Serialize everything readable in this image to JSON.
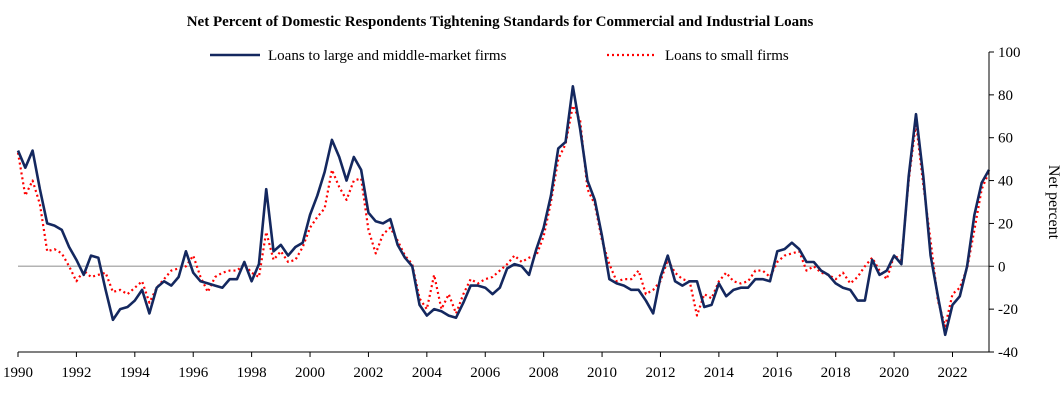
{
  "chart_data": {
    "type": "line",
    "title": "Net Percent of Domestic Respondents Tightening Standards  for Commercial  and Industrial  Loans",
    "xlabel": "",
    "ylabel": "Net percent",
    "xlim": [
      1990,
      2023.25
    ],
    "ylim": [
      -40,
      100
    ],
    "x_ticks": [
      "1990",
      "1992",
      "1994",
      "1996",
      "1998",
      "2000",
      "2002",
      "2004",
      "2006",
      "2008",
      "2010",
      "2012",
      "2014",
      "2016",
      "2018",
      "2020",
      "2022"
    ],
    "y_ticks": [
      "100",
      "80",
      "60",
      "40",
      "20",
      "0",
      "-20",
      "-40"
    ],
    "y_axis_side": "right",
    "grid": false,
    "legend_position": "top-center",
    "zero_line_color": "#b3b3b3",
    "series": [
      {
        "name": "Loans to large and middle-market firms",
        "color": "#14285f",
        "style": "solid",
        "points": [
          [
            1990.0,
            54
          ],
          [
            1990.25,
            46
          ],
          [
            1990.5,
            54
          ],
          [
            1990.75,
            36
          ],
          [
            1991.0,
            20
          ],
          [
            1991.25,
            19
          ],
          [
            1991.5,
            17
          ],
          [
            1991.75,
            9
          ],
          [
            1992.0,
            3
          ],
          [
            1992.25,
            -4
          ],
          [
            1992.5,
            5
          ],
          [
            1992.75,
            4
          ],
          [
            1993.0,
            -11
          ],
          [
            1993.25,
            -25
          ],
          [
            1993.5,
            -20
          ],
          [
            1993.75,
            -19
          ],
          [
            1994.0,
            -16
          ],
          [
            1994.25,
            -11
          ],
          [
            1994.5,
            -22
          ],
          [
            1994.75,
            -10
          ],
          [
            1995.0,
            -7
          ],
          [
            1995.25,
            -9
          ],
          [
            1995.5,
            -5
          ],
          [
            1995.75,
            7
          ],
          [
            1996.0,
            -3
          ],
          [
            1996.25,
            -7
          ],
          [
            1996.5,
            -8
          ],
          [
            1996.75,
            -9
          ],
          [
            1997.0,
            -10
          ],
          [
            1997.25,
            -6
          ],
          [
            1997.5,
            -6
          ],
          [
            1997.75,
            2
          ],
          [
            1998.0,
            -7
          ],
          [
            1998.25,
            1
          ],
          [
            1998.5,
            36
          ],
          [
            1998.75,
            7
          ],
          [
            1999.0,
            10
          ],
          [
            1999.25,
            5
          ],
          [
            1999.5,
            9
          ],
          [
            1999.75,
            11
          ],
          [
            2000.0,
            24
          ],
          [
            2000.25,
            33
          ],
          [
            2000.5,
            44
          ],
          [
            2000.75,
            59
          ],
          [
            2001.0,
            51
          ],
          [
            2001.25,
            40
          ],
          [
            2001.5,
            51
          ],
          [
            2001.75,
            45
          ],
          [
            2002.0,
            25
          ],
          [
            2002.25,
            21
          ],
          [
            2002.5,
            20
          ],
          [
            2002.75,
            22
          ],
          [
            2003.0,
            10
          ],
          [
            2003.25,
            4
          ],
          [
            2003.5,
            0
          ],
          [
            2003.75,
            -18
          ],
          [
            2004.0,
            -23
          ],
          [
            2004.25,
            -20
          ],
          [
            2004.5,
            -21
          ],
          [
            2004.75,
            -23
          ],
          [
            2005.0,
            -24
          ],
          [
            2005.25,
            -17
          ],
          [
            2005.5,
            -9
          ],
          [
            2005.75,
            -9
          ],
          [
            2006.0,
            -10
          ],
          [
            2006.25,
            -13
          ],
          [
            2006.5,
            -10
          ],
          [
            2006.75,
            -1
          ],
          [
            2007.0,
            1
          ],
          [
            2007.25,
            0
          ],
          [
            2007.5,
            -4
          ],
          [
            2007.75,
            8
          ],
          [
            2008.0,
            18
          ],
          [
            2008.25,
            33
          ],
          [
            2008.5,
            55
          ],
          [
            2008.75,
            58
          ],
          [
            2009.0,
            84
          ],
          [
            2009.25,
            64
          ],
          [
            2009.5,
            40
          ],
          [
            2009.75,
            31
          ],
          [
            2010.0,
            14
          ],
          [
            2010.25,
            -6
          ],
          [
            2010.5,
            -8
          ],
          [
            2010.75,
            -9
          ],
          [
            2011.0,
            -11
          ],
          [
            2011.25,
            -11
          ],
          [
            2011.5,
            -16
          ],
          [
            2011.75,
            -22
          ],
          [
            2012.0,
            -5
          ],
          [
            2012.25,
            5
          ],
          [
            2012.5,
            -7
          ],
          [
            2012.75,
            -9
          ],
          [
            2013.0,
            -7
          ],
          [
            2013.25,
            -7
          ],
          [
            2013.5,
            -19
          ],
          [
            2013.75,
            -18
          ],
          [
            2014.0,
            -8
          ],
          [
            2014.25,
            -14
          ],
          [
            2014.5,
            -11
          ],
          [
            2014.75,
            -10
          ],
          [
            2015.0,
            -10
          ],
          [
            2015.25,
            -6
          ],
          [
            2015.5,
            -6
          ],
          [
            2015.75,
            -7
          ],
          [
            2016.0,
            7
          ],
          [
            2016.25,
            8
          ],
          [
            2016.5,
            11
          ],
          [
            2016.75,
            8
          ],
          [
            2017.0,
            2
          ],
          [
            2017.25,
            2
          ],
          [
            2017.5,
            -2
          ],
          [
            2017.75,
            -4
          ],
          [
            2018.0,
            -8
          ],
          [
            2018.25,
            -10
          ],
          [
            2018.5,
            -11
          ],
          [
            2018.75,
            -16
          ],
          [
            2019.0,
            -16
          ],
          [
            2019.25,
            3
          ],
          [
            2019.5,
            -4
          ],
          [
            2019.75,
            -2
          ],
          [
            2020.0,
            5
          ],
          [
            2020.25,
            1
          ],
          [
            2020.5,
            42
          ],
          [
            2020.75,
            71
          ],
          [
            2021.0,
            42
          ],
          [
            2021.25,
            5
          ],
          [
            2021.5,
            -14
          ],
          [
            2021.75,
            -32
          ],
          [
            2022.0,
            -18
          ],
          [
            2022.25,
            -14
          ],
          [
            2022.5,
            0
          ],
          [
            2022.75,
            24
          ],
          [
            2023.0,
            39
          ],
          [
            2023.25,
            45
          ]
        ]
      },
      {
        "name": "Loans to small firms",
        "color": "#ff0000",
        "style": "dotted",
        "points": [
          [
            1990.0,
            53
          ],
          [
            1990.25,
            33
          ],
          [
            1990.5,
            40
          ],
          [
            1990.75,
            29
          ],
          [
            1991.0,
            7
          ],
          [
            1991.25,
            8
          ],
          [
            1991.5,
            6
          ],
          [
            1991.75,
            0
          ],
          [
            1992.0,
            -7
          ],
          [
            1992.25,
            -2
          ],
          [
            1992.5,
            -5
          ],
          [
            1992.75,
            -4
          ],
          [
            1993.0,
            -3
          ],
          [
            1993.25,
            -12
          ],
          [
            1993.5,
            -11
          ],
          [
            1993.75,
            -13
          ],
          [
            1994.0,
            -10
          ],
          [
            1994.25,
            -7
          ],
          [
            1994.5,
            -17
          ],
          [
            1994.75,
            -10
          ],
          [
            1995.0,
            -6
          ],
          [
            1995.25,
            -2
          ],
          [
            1995.5,
            -1
          ],
          [
            1995.75,
            0
          ],
          [
            1996.0,
            5
          ],
          [
            1996.25,
            -5
          ],
          [
            1996.5,
            -12
          ],
          [
            1996.75,
            -5
          ],
          [
            1997.0,
            -3
          ],
          [
            1997.25,
            -2
          ],
          [
            1997.5,
            -2
          ],
          [
            1997.75,
            1
          ],
          [
            1998.0,
            -3
          ],
          [
            1998.25,
            -5
          ],
          [
            1998.5,
            16
          ],
          [
            1998.75,
            3
          ],
          [
            1999.0,
            7
          ],
          [
            1999.25,
            2
          ],
          [
            1999.5,
            3
          ],
          [
            1999.75,
            9
          ],
          [
            2000.0,
            18
          ],
          [
            2000.25,
            23
          ],
          [
            2000.5,
            27
          ],
          [
            2000.75,
            45
          ],
          [
            2001.0,
            37
          ],
          [
            2001.25,
            31
          ],
          [
            2001.5,
            40
          ],
          [
            2001.75,
            41
          ],
          [
            2002.0,
            17
          ],
          [
            2002.25,
            6
          ],
          [
            2002.5,
            15
          ],
          [
            2002.75,
            18
          ],
          [
            2003.0,
            12
          ],
          [
            2003.25,
            5
          ],
          [
            2003.5,
            1
          ],
          [
            2003.75,
            -15
          ],
          [
            2004.0,
            -20
          ],
          [
            2004.25,
            -4
          ],
          [
            2004.5,
            -20
          ],
          [
            2004.75,
            -13
          ],
          [
            2005.0,
            -22
          ],
          [
            2005.25,
            -13
          ],
          [
            2005.5,
            -6
          ],
          [
            2005.75,
            -8
          ],
          [
            2006.0,
            -6
          ],
          [
            2006.25,
            -5
          ],
          [
            2006.5,
            -2
          ],
          [
            2006.75,
            1
          ],
          [
            2007.0,
            5
          ],
          [
            2007.25,
            2
          ],
          [
            2007.5,
            4
          ],
          [
            2007.75,
            5
          ],
          [
            2008.0,
            14
          ],
          [
            2008.25,
            30
          ],
          [
            2008.5,
            50
          ],
          [
            2008.75,
            57
          ],
          [
            2009.0,
            75
          ],
          [
            2009.25,
            68
          ],
          [
            2009.5,
            36
          ],
          [
            2009.75,
            29
          ],
          [
            2010.0,
            12
          ],
          [
            2010.25,
            1
          ],
          [
            2010.5,
            -7
          ],
          [
            2010.75,
            -6
          ],
          [
            2011.0,
            -6
          ],
          [
            2011.25,
            -2
          ],
          [
            2011.5,
            -13
          ],
          [
            2011.75,
            -11
          ],
          [
            2012.0,
            -7
          ],
          [
            2012.25,
            3
          ],
          [
            2012.5,
            -3
          ],
          [
            2012.75,
            -6
          ],
          [
            2013.0,
            -7
          ],
          [
            2013.25,
            -23
          ],
          [
            2013.5,
            -13
          ],
          [
            2013.75,
            -15
          ],
          [
            2014.0,
            -7
          ],
          [
            2014.25,
            -3
          ],
          [
            2014.5,
            -7
          ],
          [
            2014.75,
            -8
          ],
          [
            2015.0,
            -7
          ],
          [
            2015.25,
            -2
          ],
          [
            2015.5,
            -2
          ],
          [
            2015.75,
            -5
          ],
          [
            2016.0,
            2
          ],
          [
            2016.25,
            5
          ],
          [
            2016.5,
            6
          ],
          [
            2016.75,
            7
          ],
          [
            2017.0,
            -2
          ],
          [
            2017.25,
            0
          ],
          [
            2017.5,
            -3
          ],
          [
            2017.75,
            -4
          ],
          [
            2018.0,
            -6
          ],
          [
            2018.25,
            -3
          ],
          [
            2018.5,
            -8
          ],
          [
            2018.75,
            -5
          ],
          [
            2019.0,
            0
          ],
          [
            2019.25,
            4
          ],
          [
            2019.5,
            -2
          ],
          [
            2019.75,
            -6
          ],
          [
            2020.0,
            5
          ],
          [
            2020.25,
            3
          ],
          [
            2020.5,
            40
          ],
          [
            2020.75,
            67
          ],
          [
            2021.0,
            38
          ],
          [
            2021.25,
            12
          ],
          [
            2021.5,
            -16
          ],
          [
            2021.75,
            -28
          ],
          [
            2022.0,
            -13
          ],
          [
            2022.25,
            -10
          ],
          [
            2022.5,
            -1
          ],
          [
            2022.75,
            17
          ],
          [
            2023.0,
            36
          ],
          [
            2023.25,
            44
          ]
        ]
      }
    ]
  }
}
